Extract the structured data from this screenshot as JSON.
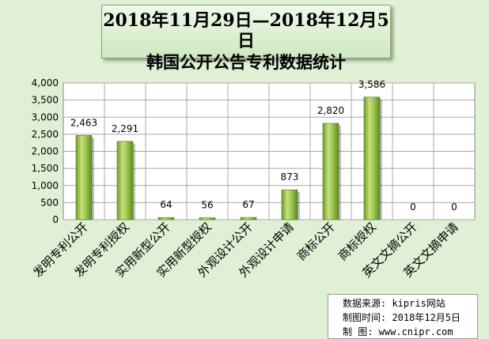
{
  "title": {
    "line1": "2018年11月29日—2018年12月5日",
    "line2": "韩国公开公告专利数据统计"
  },
  "source": {
    "line1": "数据来源: kipris网站",
    "line2": "制图时间: 2018年12月5日",
    "line3": "制    图: www.cnipr.com"
  },
  "colors": {
    "background": "#dff0d5",
    "plot_area": "#ffffff",
    "bar_light": "#c6e27c",
    "bar_dark": "#5f8a1e",
    "grid": "#a8a8a8"
  },
  "chart_data": {
    "type": "bar",
    "categories": [
      "发明专利公开",
      "发明专利授权",
      "实用新型公开",
      "实用新型授权",
      "外观设计公开",
      "外观设计申请",
      "商标公开",
      "商标授权",
      "英文文摘公开",
      "英文文摘申请"
    ],
    "values": [
      2463,
      2291,
      64,
      56,
      67,
      873,
      2820,
      3586,
      0,
      0
    ],
    "data_labels": [
      "2,463",
      "2,291",
      "64",
      "56",
      "67",
      "873",
      "2,820",
      "3,586",
      "0",
      "0"
    ],
    "yticks": [
      "0",
      "500",
      "1,000",
      "1,500",
      "2,000",
      "2,500",
      "3,000",
      "3,500",
      "4,000"
    ],
    "ylim": [
      0,
      4000
    ],
    "grid": true,
    "legend": "none"
  }
}
